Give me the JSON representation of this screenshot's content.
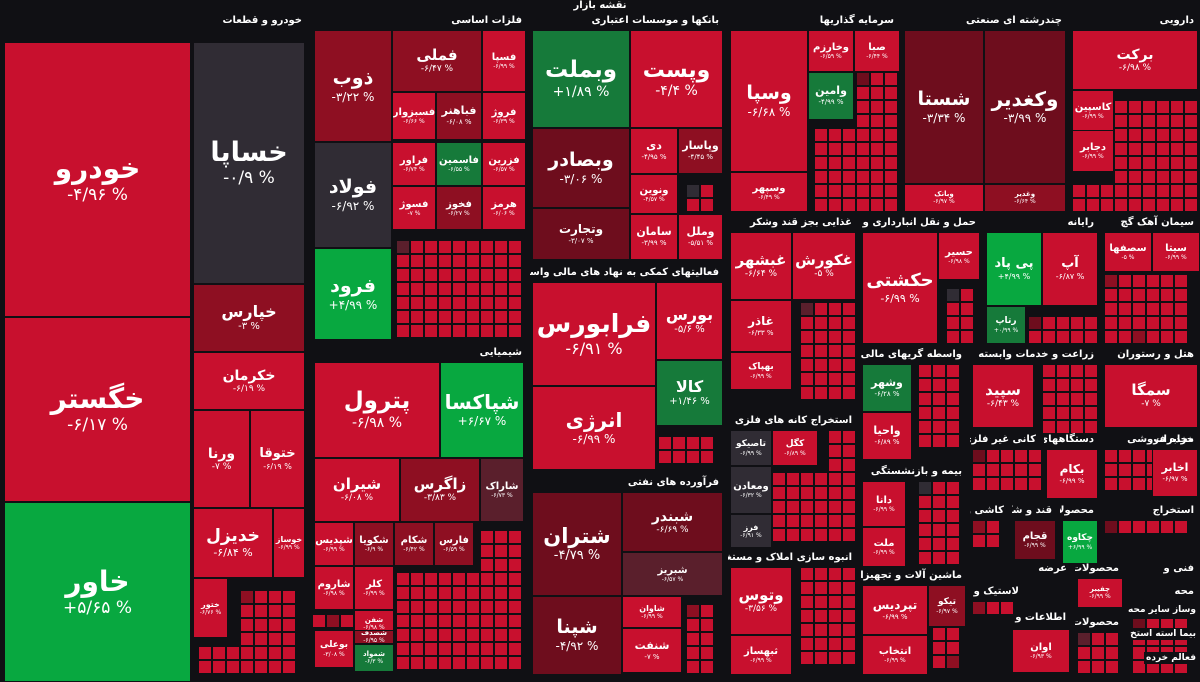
{
  "map_title": "نقشه بازار",
  "colors": {
    "red": "#c8102e",
    "darkred": "#8e0f22",
    "maroon": "#6e0d1d",
    "plum": "#5a1f2c",
    "gray": "#302c34",
    "green": "#08a840",
    "dgreen": "#167a3a",
    "bg": "#101014"
  },
  "sectors": [
    {
      "id": "auto",
      "label": "خودرو و قطعات",
      "tiles": [
        {
          "symbol": "خودرو",
          "change": "-۴/۹۶ %",
          "color": "red"
        },
        {
          "symbol": "خگستر",
          "change": "-۶/۱۷ %",
          "color": "red"
        },
        {
          "symbol": "خاور",
          "change": "+۵/۶۵ %",
          "color": "green"
        },
        {
          "symbol": "خساپا",
          "change": "-۰/۹ %",
          "color": "gray"
        },
        {
          "symbol": "خپارس",
          "change": "-۳ %",
          "color": "darkred"
        },
        {
          "symbol": "خکرمان",
          "change": "-۶/۱۹ %",
          "color": "red"
        },
        {
          "symbol": "ورنا",
          "change": "-۷ %",
          "color": "red"
        },
        {
          "symbol": "ختوقا",
          "change": "-۶/۱۹ %",
          "color": "red"
        },
        {
          "symbol": "خدیزل",
          "change": "-۶/۸۴ %",
          "color": "red"
        },
        {
          "symbol": "خوساز",
          "change": "-۶/۹۹ %",
          "color": "red"
        },
        {
          "symbol": "ختور",
          "change": "-۶/۷۶ %",
          "color": "red"
        }
      ]
    },
    {
      "id": "metals",
      "label": "فلزات اساسی",
      "tiles": [
        {
          "symbol": "ذوب",
          "change": "-۳/۲۲ %",
          "color": "darkred"
        },
        {
          "symbol": "فملی",
          "change": "-۶/۴۷ %",
          "color": "darkred"
        },
        {
          "symbol": "فسپا",
          "change": "-۶/۹۹ %",
          "color": "red"
        },
        {
          "symbol": "فسبزوار",
          "change": "-۶/۶۶ %",
          "color": "red"
        },
        {
          "symbol": "فباهنر",
          "change": "-۶/۰۸ %",
          "color": "darkred"
        },
        {
          "symbol": "فروژ",
          "change": "-۶/۳۹ %",
          "color": "red"
        },
        {
          "symbol": "فولاد",
          "change": "-۶/۹۲ %",
          "color": "gray"
        },
        {
          "symbol": "فراور",
          "change": "-۶/۷۴ %",
          "color": "red"
        },
        {
          "symbol": "فاسمین",
          "change": "-۶/۵۵ %",
          "color": "dgreen"
        },
        {
          "symbol": "فزرین",
          "change": "-۶/۵۷ %",
          "color": "red"
        },
        {
          "symbol": "فسوژ",
          "change": "-۷ %",
          "color": "red"
        },
        {
          "symbol": "فخوز",
          "change": "-۶/۲۷ %",
          "color": "darkred"
        },
        {
          "symbol": "هرمز",
          "change": "-۶/۰۶ %",
          "color": "red"
        },
        {
          "symbol": "فرود",
          "change": "+۴/۹۹ %",
          "color": "green"
        }
      ]
    },
    {
      "id": "banks",
      "label": "بانکها و موسسات اعتباری",
      "tiles": [
        {
          "symbol": "وبملت",
          "change": "+۱/۸۹ %",
          "color": "dgreen"
        },
        {
          "symbol": "وپست",
          "change": "-۴/۴ %",
          "color": "red"
        },
        {
          "symbol": "وبصادر",
          "change": "-۳/۰۶ %",
          "color": "maroon"
        },
        {
          "symbol": "دی",
          "change": "-۴/۹۵ %",
          "color": "red"
        },
        {
          "symbol": "وپاسار",
          "change": "-۴/۴۵ %",
          "color": "darkred"
        },
        {
          "symbol": "ونوین",
          "change": "-۴/۵۷ %",
          "color": "red"
        },
        {
          "symbol": "وتجارت",
          "change": "-۳/۰۷ %",
          "color": "maroon"
        },
        {
          "symbol": "سامان",
          "change": "-۳/۹۹ %",
          "color": "red"
        },
        {
          "symbol": "وملل",
          "change": "-۵/۵۱ %",
          "color": "red"
        }
      ]
    },
    {
      "id": "invest",
      "label": "سرمایه گذاریها",
      "tiles": [
        {
          "symbol": "وسپا",
          "change": "-۶/۶۸ %",
          "color": "red"
        },
        {
          "symbol": "وخارزم",
          "change": "-۶/۵۹ %",
          "color": "red"
        },
        {
          "symbol": "صبا",
          "change": "-۶/۴۴ %",
          "color": "red"
        },
        {
          "symbol": "وامین",
          "change": "-۴/۹۹ %",
          "color": "dgreen"
        },
        {
          "symbol": "وسپهر",
          "change": "-۶/۴۹ %",
          "color": "red"
        }
      ]
    },
    {
      "id": "holdings",
      "label": "چندرشته ای صنعتی",
      "tiles": [
        {
          "symbol": "شستا",
          "change": "-۳/۳۴ %",
          "color": "maroon"
        },
        {
          "symbol": "وکغدیر",
          "change": "-۳/۹۹ %",
          "color": "maroon"
        },
        {
          "symbol": "وبانک",
          "change": "-۶/۹۷ %",
          "color": "red"
        },
        {
          "symbol": "وغدیر",
          "change": "-۶/۶۴ %",
          "color": "darkred"
        }
      ]
    },
    {
      "id": "pharma",
      "label": "دارویی",
      "tiles": [
        {
          "symbol": "برکت",
          "change": "-۶/۹۸ %",
          "color": "red"
        },
        {
          "symbol": "کاسپین",
          "change": "-۶/۹۹ %",
          "color": "red"
        },
        {
          "symbol": "دجابر",
          "change": "-۶/۹۹ %",
          "color": "red"
        }
      ]
    },
    {
      "id": "chem",
      "label": "شیمیایی",
      "tiles": [
        {
          "symbol": "پترول",
          "change": "-۶/۹۸ %",
          "color": "red"
        },
        {
          "symbol": "شپاکسا",
          "change": "+۶/۶۷ %",
          "color": "green"
        },
        {
          "symbol": "شیران",
          "change": "-۶/۰۸ %",
          "color": "red"
        },
        {
          "symbol": "زاگرس",
          "change": "-۳/۸۳ %",
          "color": "darkred"
        },
        {
          "symbol": "شاراک",
          "change": "-۶/۷۳ %",
          "color": "plum"
        },
        {
          "symbol": "شپدیس",
          "change": "-۶/۹۹ %",
          "color": "red"
        },
        {
          "symbol": "شکویا",
          "change": "-۶/۹ %",
          "color": "darkred"
        },
        {
          "symbol": "شکام",
          "change": "-۶/۴۲ %",
          "color": "darkred"
        },
        {
          "symbol": "فارس",
          "change": "-۶/۵۹ %",
          "color": "darkred"
        },
        {
          "symbol": "شاروم",
          "change": "-۶/۹۸ %",
          "color": "red"
        },
        {
          "symbol": "کلر",
          "change": "-۶/۹۹ %",
          "color": "red"
        },
        {
          "symbol": "شفن",
          "change": "-۶/۹۸ %",
          "color": "red"
        },
        {
          "symbol": "بوعلی",
          "change": "-۳/۰۸ %",
          "color": "red"
        },
        {
          "symbol": "شصدف",
          "change": "-۶/۹۵ %",
          "color": "darkred"
        },
        {
          "symbol": "شمواد",
          "change": "-۶/۳ %",
          "color": "dgreen"
        }
      ]
    },
    {
      "id": "financial",
      "label": "فعالیتهای کمکی به نهاد های مالی واسط",
      "tiles": [
        {
          "symbol": "فرابورس",
          "change": "-۶/۹۱ %",
          "color": "red"
        },
        {
          "symbol": "بورس",
          "change": "-۵/۶ %",
          "color": "red"
        },
        {
          "symbol": "انرژی",
          "change": "-۶/۹۹ %",
          "color": "red"
        },
        {
          "symbol": "کالا",
          "change": "+۱/۴۶ %",
          "color": "dgreen"
        }
      ]
    },
    {
      "id": "refinery",
      "label": "فرآورده های نفتی",
      "tiles": [
        {
          "symbol": "شتران",
          "change": "-۴/۷۹ %",
          "color": "maroon"
        },
        {
          "symbol": "شبندر",
          "change": "-۶/۶۹ %",
          "color": "maroon"
        },
        {
          "symbol": "شپنا",
          "change": "-۴/۹۲ %",
          "color": "maroon"
        },
        {
          "symbol": "شبریز",
          "change": "-۶/۵۷ %",
          "color": "plum"
        },
        {
          "symbol": "شاوان",
          "change": "-۶/۹۹ %",
          "color": "red"
        },
        {
          "symbol": "شنفت",
          "change": "-۷ %",
          "color": "red"
        }
      ]
    },
    {
      "id": "food",
      "label": "غذایی بجز قند وشکر",
      "tiles": [
        {
          "symbol": "غبشهر",
          "change": "-۶/۶۴ %",
          "color": "red"
        },
        {
          "symbol": "غکورش",
          "change": "-۵ %",
          "color": "red"
        },
        {
          "symbol": "غاذر",
          "change": "-۶/۳۳ %",
          "color": "red"
        },
        {
          "symbol": "بهپاک",
          "change": "-۶/۹۹ %",
          "color": "red"
        }
      ]
    },
    {
      "id": "transport",
      "label": "حمل و نقل انبارداری و",
      "tiles": [
        {
          "symbol": "حکشتی",
          "change": "-۶/۹۹ %",
          "color": "red"
        },
        {
          "symbol": "حسیر",
          "change": "-۶/۹۸ %",
          "color": "red"
        }
      ]
    },
    {
      "id": "computer",
      "label": "رایانه",
      "tiles": [
        {
          "symbol": "پی پاد",
          "change": "+۴/۹۹ %",
          "color": "green"
        },
        {
          "symbol": "آپ",
          "change": "-۶/۸۷ %",
          "color": "red"
        },
        {
          "symbol": "رتاپ",
          "change": "+۰/۹۹ %",
          "color": "dgreen"
        }
      ]
    },
    {
      "id": "cement",
      "label": "سیمان آهک گچ",
      "tiles": [
        {
          "symbol": "سصفها",
          "change": "-۵ %",
          "color": "red"
        },
        {
          "symbol": "سیتا",
          "change": "-۶/۹۹ %",
          "color": "red"
        }
      ]
    },
    {
      "id": "mining",
      "label": "استخراج کانه های فلزی",
      "tiles": [
        {
          "symbol": "کگل",
          "change": "-۶/۸۹ %",
          "color": "red"
        },
        {
          "symbol": "تاصیکو",
          "change": "-۶/۹۹ %",
          "color": "gray"
        },
        {
          "symbol": "ومعادن",
          "change": "-۶/۳۲ %",
          "color": "gray"
        },
        {
          "symbol": "فرز",
          "change": "-۶/۹۱ %",
          "color": "gray"
        }
      ]
    },
    {
      "id": "finance_agents",
      "label": "واسطه گریهای مالی و",
      "tiles": [
        {
          "symbol": "وشهر",
          "change": "-۶/۲۸ %",
          "color": "dgreen"
        },
        {
          "symbol": "واحیا",
          "change": "-۶/۸۹ %",
          "color": "red"
        }
      ]
    },
    {
      "id": "agri",
      "label": "زراعت و خدمات وابسته",
      "tiles": [
        {
          "symbol": "سپید",
          "change": "-۶/۴۳ %",
          "color": "red"
        }
      ]
    },
    {
      "id": "hotel",
      "label": "هتل و رستوران",
      "tiles": [
        {
          "symbol": "سمگا",
          "change": "-۷ %",
          "color": "red"
        }
      ]
    },
    {
      "id": "retail",
      "label": "خرده فروشی",
      "tiles": []
    },
    {
      "id": "insurance",
      "label": "بیمه و بازنشستگی",
      "tiles": [
        {
          "symbol": "دانا",
          "change": "-۶/۹۹ %",
          "color": "red"
        },
        {
          "symbol": "ملت",
          "change": "-۶/۹۹ %",
          "color": "red"
        }
      ]
    },
    {
      "id": "nonmetal",
      "label": "کانی غیر فلزی",
      "tiles": []
    },
    {
      "id": "electric",
      "label": "دستگاههای برقی",
      "tiles": [
        {
          "symbol": "بکام",
          "change": "-۶/۹۹ %",
          "color": "red"
        }
      ]
    },
    {
      "id": "telecom",
      "label": "مخابرات",
      "tiles": [
        {
          "symbol": "اخابر",
          "change": "-۶/۹۷ %",
          "color": "red"
        }
      ]
    },
    {
      "id": "construction",
      "label": "انبوه سازی املاک و مستغلات",
      "tiles": [
        {
          "symbol": "وتوس",
          "change": "-۳/۵۶ %",
          "color": "red"
        },
        {
          "symbol": "ثبهساز",
          "change": "-۶/۹۹ %",
          "color": "red"
        }
      ]
    },
    {
      "id": "equip",
      "label": "ماشین آلات و تجهیزات",
      "tiles": [
        {
          "symbol": "تپردیس",
          "change": "-۶/۹۹ %",
          "color": "red"
        },
        {
          "symbol": "تیکو",
          "change": "-۶/۹۷ %",
          "color": "darkred"
        },
        {
          "symbol": "انتخاب",
          "change": "-۶/۹۹ %",
          "color": "red"
        }
      ]
    },
    {
      "id": "tiles",
      "label": "کاشی و",
      "tiles": []
    },
    {
      "id": "sugar",
      "label": "قند و شکر",
      "tiles": [
        {
          "symbol": "قجام",
          "change": "-۶/۹۹ %",
          "color": "maroon"
        }
      ]
    },
    {
      "id": "products",
      "label": "محصولات",
      "tiles": [
        {
          "symbol": "چکاوه",
          "change": "+۶/۹۹ %",
          "color": "green"
        }
      ]
    },
    {
      "id": "extract",
      "label": "استخراج",
      "tiles": []
    },
    {
      "id": "rubber",
      "label": "لاستیک و",
      "tiles": []
    },
    {
      "id": "offer",
      "label": "عرضه",
      "tiles": []
    },
    {
      "id": "products2",
      "label": "محصولات",
      "tiles": [
        {
          "symbol": "چفیبر",
          "change": "-۶/۹۹ %",
          "color": "red"
        }
      ]
    },
    {
      "id": "tech",
      "label": "فنی و",
      "tiles": []
    },
    {
      "id": "info",
      "label": "اطلاعات و",
      "tiles": [
        {
          "symbol": "اوان",
          "change": "-۶/۹۳ %",
          "color": "red"
        }
      ]
    },
    {
      "id": "products3",
      "label": "محصولات",
      "tiles": []
    },
    {
      "id": "misc",
      "label": "محه",
      "tiles": []
    },
    {
      "id": "misc_labels",
      "label": "",
      "tiles": [],
      "notes": [
        "وساز سایر محه",
        "بیما استه استخ",
        "فعالم خرده"
      ]
    }
  ]
}
